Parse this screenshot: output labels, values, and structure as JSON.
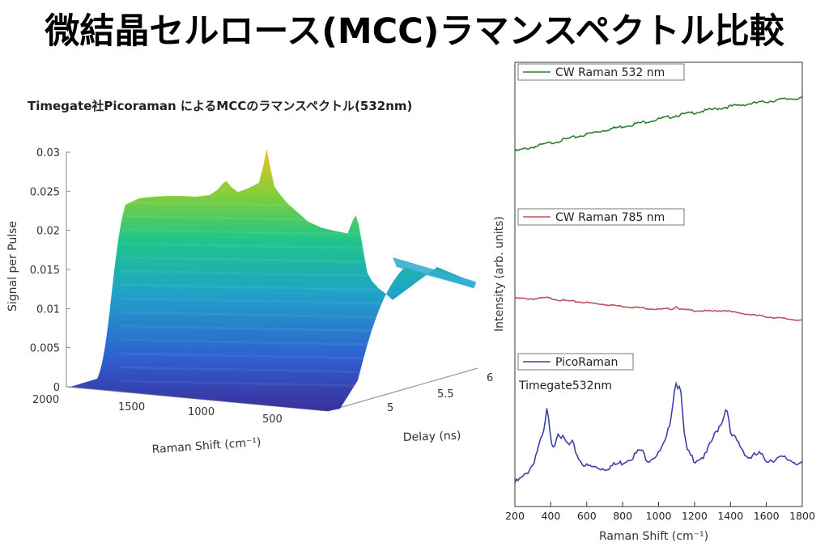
{
  "title": "微結晶セルロース(MCC)ラマンスペクトル比較",
  "chart_data": [
    {
      "type": "area",
      "subtype": "3d-surface",
      "title": "Timegate社Picoraman によるMCCのラマンスペクトル(532nm)",
      "zlabel": "Signal per Pulse",
      "xlabel": "Raman Shift (cm⁻¹)",
      "ylabel": "Delay (ns)",
      "x_ticks": [
        "2000",
        "1500",
        "1000",
        "500"
      ],
      "y_ticks": [
        "5",
        "5.5",
        "6"
      ],
      "z_ticks": [
        "0",
        "0.005",
        "0.01",
        "0.015",
        "0.02",
        "0.025",
        "0.03"
      ],
      "zlim": [
        0,
        0.03
      ],
      "xlim": [
        2000,
        200
      ],
      "colormap": [
        "#3b2f9b",
        "#2f5fd0",
        "#1fa3c8",
        "#1fc58a",
        "#7fcf3c",
        "#f2c21c"
      ],
      "ridge_profile": {
        "x": [
          2000,
          1900,
          1800,
          1700,
          1600,
          1500,
          1450,
          1400,
          1380,
          1350,
          1300,
          1250,
          1200,
          1150,
          1120,
          1095,
          1070,
          1040,
          1000,
          950,
          900,
          850,
          800,
          700,
          600,
          520,
          480,
          460,
          440,
          400,
          380,
          350,
          300,
          250,
          200
        ],
        "z": [
          0.027,
          0.0272,
          0.0273,
          0.0273,
          0.0272,
          0.0274,
          0.028,
          0.029,
          0.0292,
          0.0285,
          0.0278,
          0.0281,
          0.0285,
          0.029,
          0.031,
          0.0333,
          0.031,
          0.0285,
          0.0275,
          0.0264,
          0.0256,
          0.0248,
          0.024,
          0.0232,
          0.0228,
          0.0225,
          0.0243,
          0.0248,
          0.0235,
          0.0195,
          0.0175,
          0.0165,
          0.0155,
          0.0148,
          0.014
        ]
      }
    },
    {
      "type": "line",
      "xlabel": "Raman Shift (cm⁻¹)",
      "ylabel": "Intensity (arb. units)",
      "xlim": [
        200,
        1800
      ],
      "x_ticks": [
        200,
        400,
        600,
        800,
        1000,
        1200,
        1400,
        1600,
        1800
      ],
      "series": [
        {
          "name": "CW Raman 532 nm",
          "color": "#2e7d32",
          "x": [
            200,
            300,
            400,
            500,
            600,
            700,
            800,
            900,
            1000,
            1100,
            1200,
            1300,
            1400,
            1500,
            1600,
            1700,
            1800
          ],
          "y": [
            0.0,
            0.07,
            0.14,
            0.21,
            0.28,
            0.35,
            0.41,
            0.47,
            0.53,
            0.59,
            0.64,
            0.69,
            0.74,
            0.78,
            0.82,
            0.86,
            0.88
          ]
        },
        {
          "name": "CW Raman 785 nm",
          "color": "#c0505a",
          "x": [
            200,
            300,
            380,
            450,
            600,
            800,
            1000,
            1080,
            1100,
            1120,
            1200,
            1300,
            1380,
            1400,
            1500,
            1600,
            1700,
            1800
          ],
          "y": [
            0.72,
            0.7,
            0.74,
            0.66,
            0.58,
            0.46,
            0.36,
            0.38,
            0.46,
            0.36,
            0.32,
            0.3,
            0.33,
            0.28,
            0.2,
            0.12,
            0.06,
            0.0
          ]
        },
        {
          "name": "PicoRaman",
          "annotation": "Timegate532nm",
          "color": "#3f3fa8",
          "x": [
            200,
            250,
            300,
            330,
            360,
            380,
            400,
            420,
            440,
            460,
            500,
            520,
            560,
            600,
            700,
            800,
            860,
            900,
            940,
            1000,
            1040,
            1060,
            1080,
            1095,
            1100,
            1120,
            1140,
            1160,
            1200,
            1260,
            1300,
            1330,
            1360,
            1380,
            1400,
            1430,
            1460,
            1500,
            1560,
            1600,
            1700,
            1800
          ],
          "y": [
            0.0,
            0.06,
            0.18,
            0.34,
            0.48,
            0.72,
            0.4,
            0.36,
            0.5,
            0.44,
            0.36,
            0.38,
            0.22,
            0.16,
            0.14,
            0.2,
            0.26,
            0.32,
            0.22,
            0.28,
            0.4,
            0.55,
            0.78,
            1.0,
            0.92,
            0.96,
            0.5,
            0.3,
            0.22,
            0.26,
            0.42,
            0.52,
            0.62,
            0.75,
            0.46,
            0.42,
            0.34,
            0.24,
            0.28,
            0.22,
            0.24,
            0.18
          ]
        }
      ]
    }
  ]
}
